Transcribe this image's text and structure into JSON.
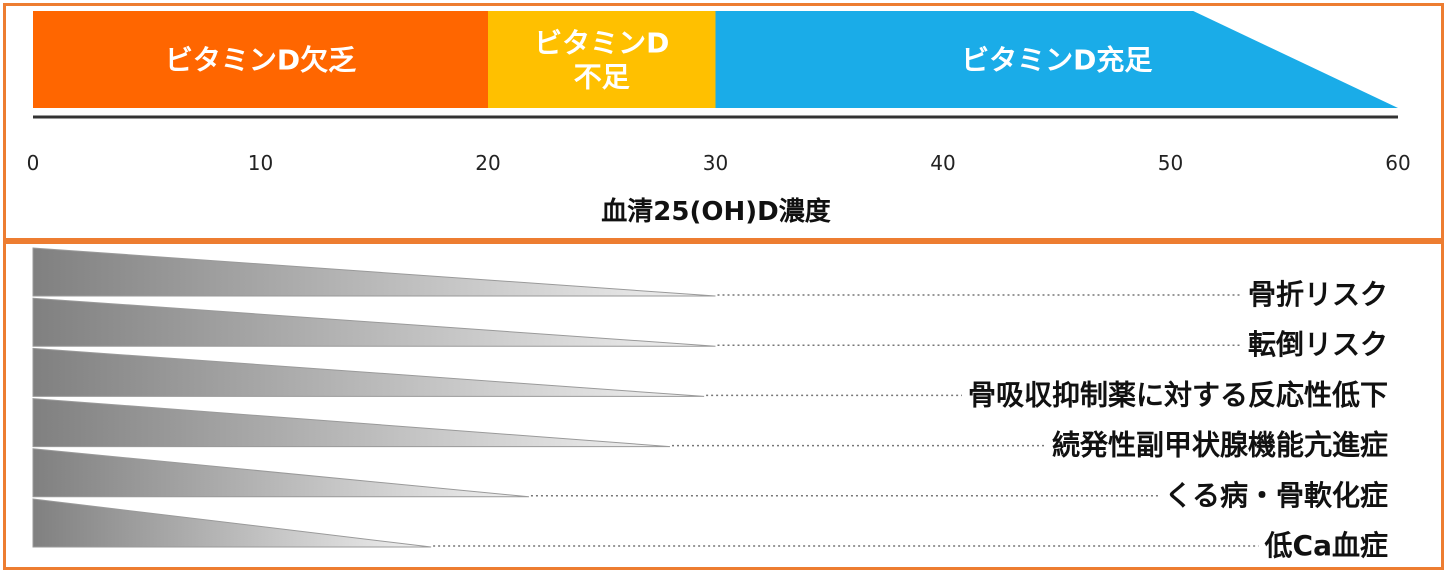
{
  "colors": {
    "frame": "#ED7D31",
    "deficiency": "#FF6600",
    "insufficiency": "#FFC000",
    "sufficiency": "#1AACE8",
    "wedge_dark": "#808080",
    "wedge_light": "#F2F2F2"
  },
  "zones": [
    {
      "from": 0,
      "to": 20,
      "label_lines": [
        "ビタミンD欠乏"
      ],
      "color": "#FF6600"
    },
    {
      "from": 20,
      "to": 30,
      "label_lines": [
        "ビタミンD",
        "不足"
      ],
      "color": "#FFC000"
    },
    {
      "from": 30,
      "to": 60,
      "label_lines": [
        "ビタミンD充足"
      ],
      "color": "#1AACE8"
    }
  ],
  "axis": {
    "min": 0,
    "max": 60,
    "ticks": [
      "0",
      "10",
      "20",
      "30",
      "40",
      "50",
      "60"
    ],
    "title": "血清25(OH)D濃度"
  },
  "risks": [
    {
      "label": "骨折リスク",
      "until": 30
    },
    {
      "label": "転倒リスク",
      "until": 30
    },
    {
      "label": "骨吸収抑制薬に対する反応性低下",
      "until": 29.5
    },
    {
      "label": "続発性副甲状腺機能亢進症",
      "until": 28
    },
    {
      "label": "くる病・骨軟化症",
      "until": 21.8
    },
    {
      "label": "低Ca血症",
      "until": 17.5
    }
  ]
}
